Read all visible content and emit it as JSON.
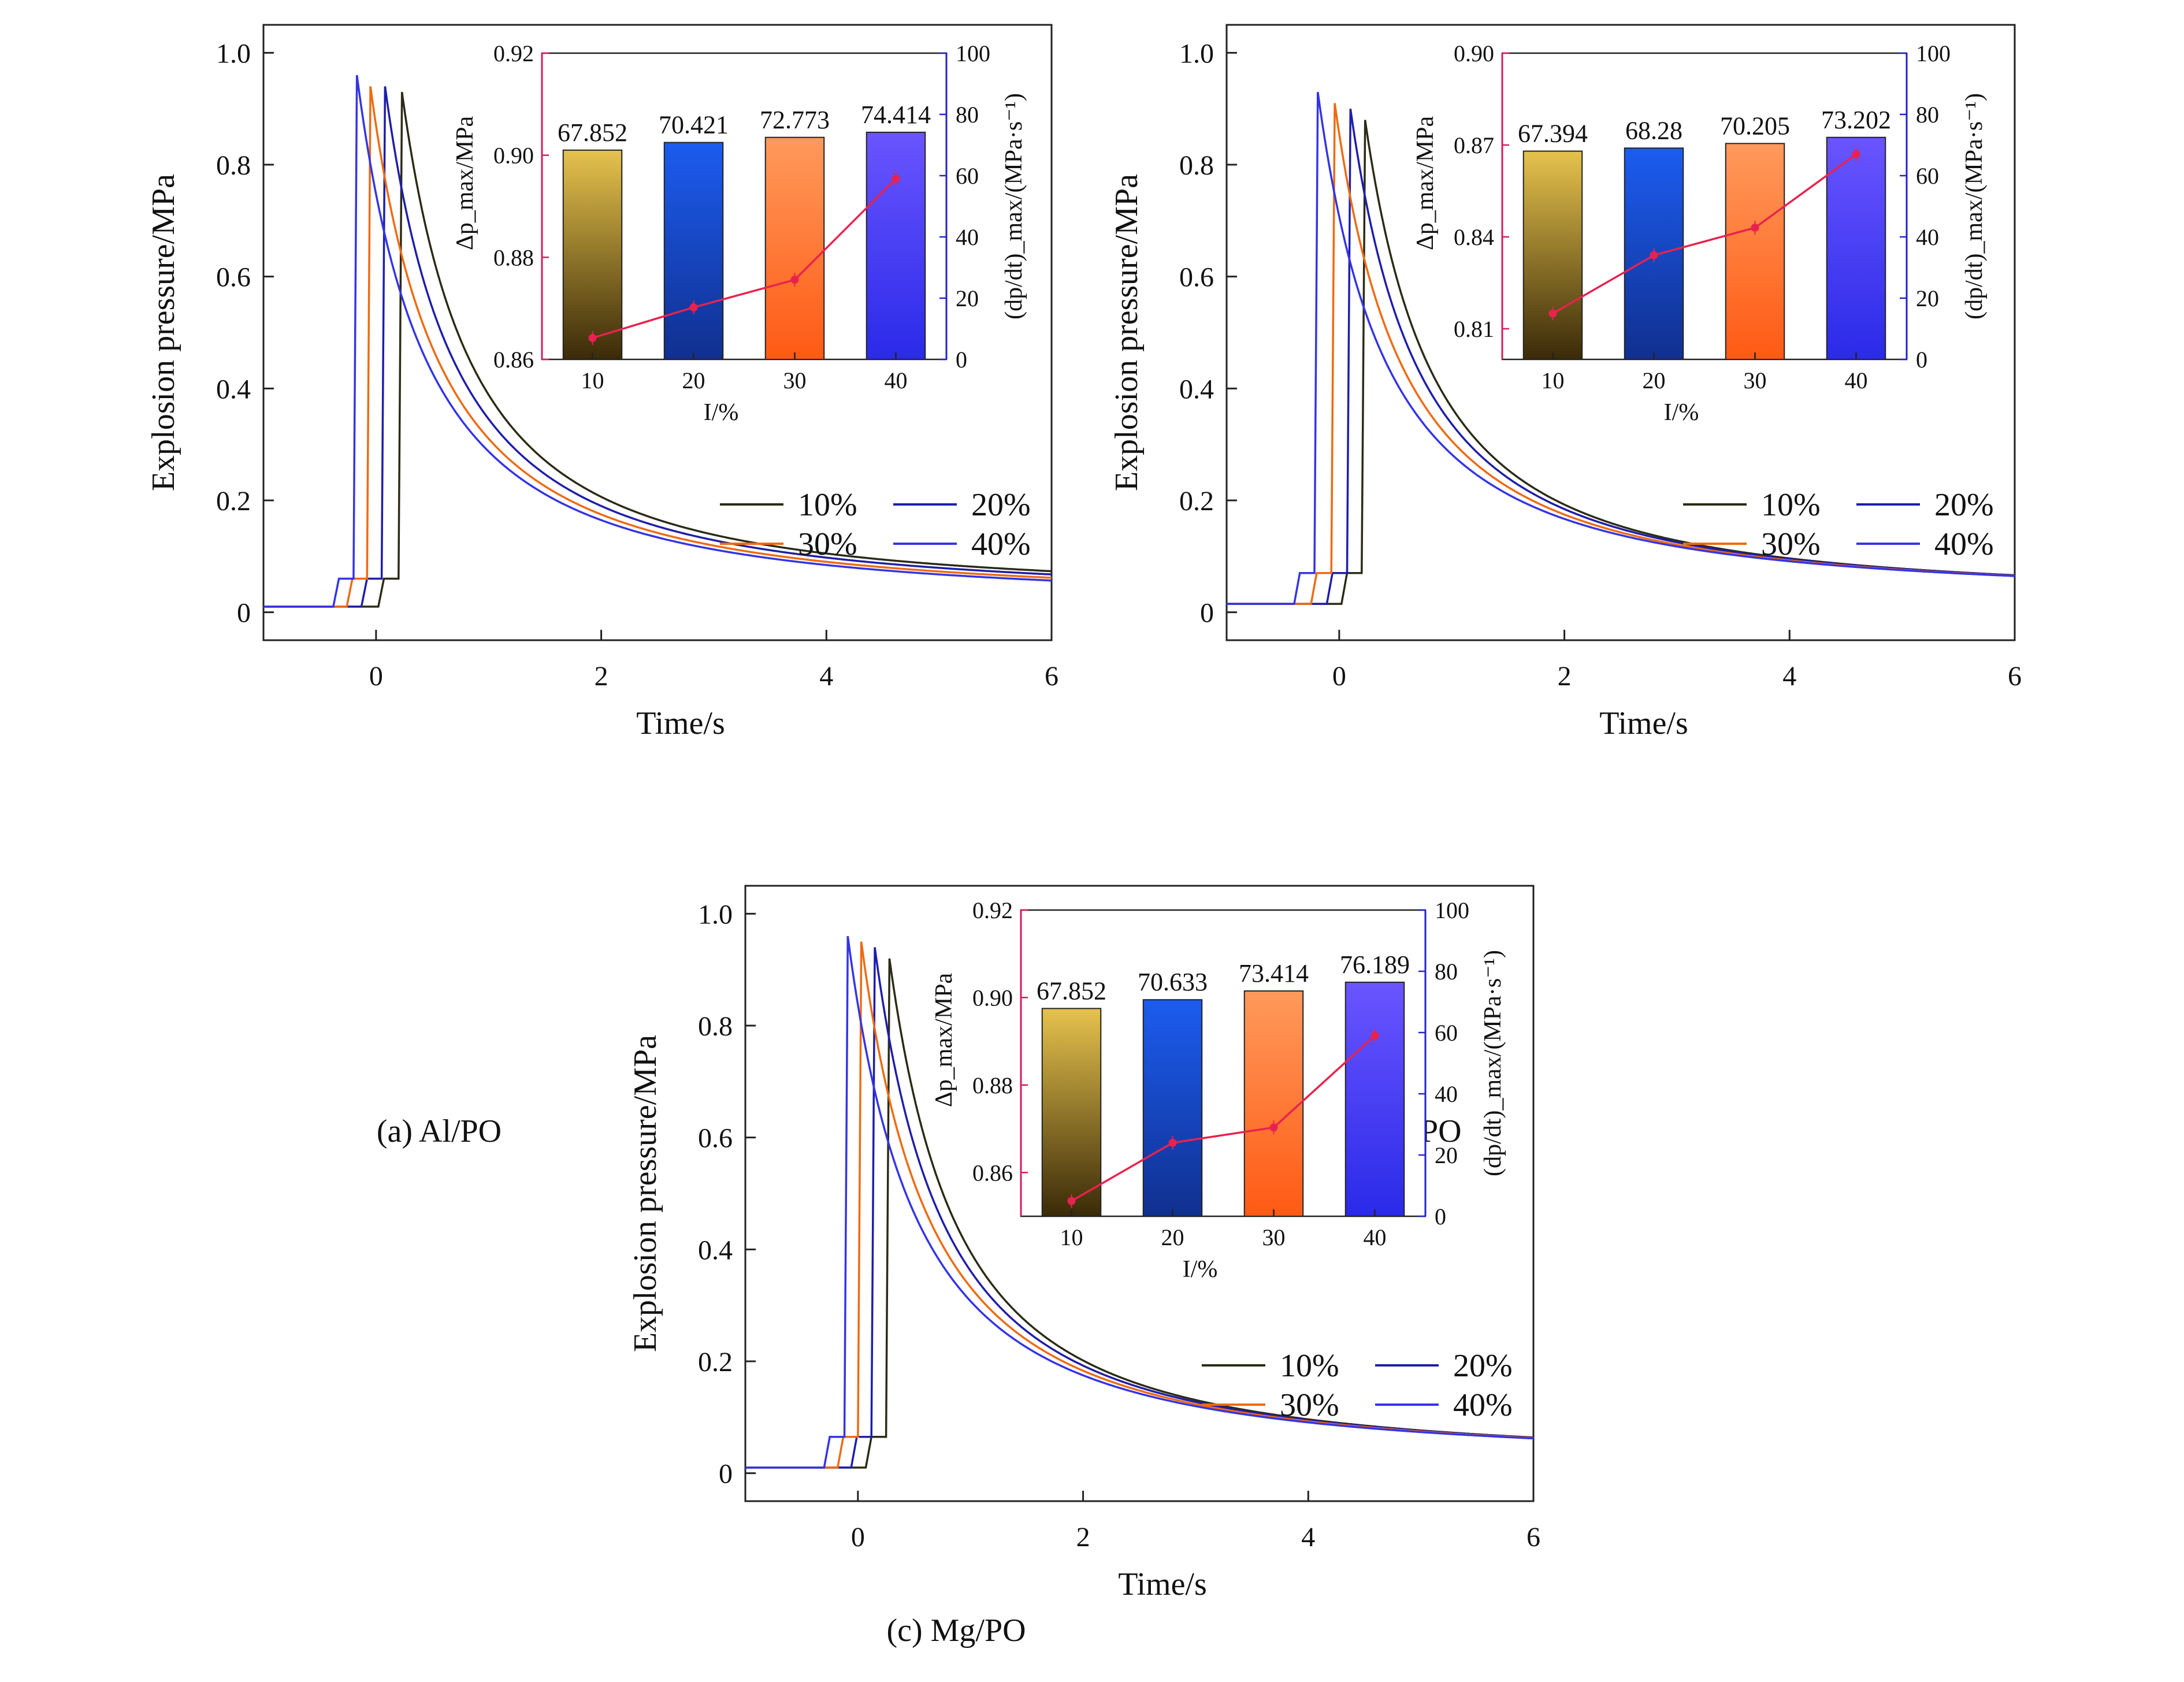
{
  "figure": {
    "legend_labels": [
      "10%",
      "20%",
      "30%",
      "40%"
    ],
    "series_colors": {
      "10%": "#2b2b16",
      "20%": "#1e1eaa",
      "30%": "#ee6a12",
      "40%": "#3434e6"
    },
    "inset_line_color": "#e8224e",
    "inset_left_axis_color": "#d81a5c",
    "inset_right_axis_color": "#2323c8",
    "inset_bar_gradients": {
      "10": [
        "#e6c24d",
        "#3a2a08"
      ],
      "20": [
        "#1c5cf0",
        "#10308f"
      ],
      "30": [
        "#ff9a5c",
        "#ff5a14"
      ],
      "40": [
        "#6a55ff",
        "#2a2ae8"
      ]
    }
  },
  "chart_data": [
    {
      "type": "line",
      "caption": "(a) Al/PO",
      "xlabel": "Time/s",
      "ylabel": "Explosion pressure/MPa",
      "xlim": [
        -1,
        6
      ],
      "ylim": [
        -0.05,
        1.05
      ],
      "x_ticks": [
        "0",
        "2",
        "4",
        "6"
      ],
      "y_ticks": [
        "0",
        "0.2",
        "0.4",
        "0.6",
        "0.8",
        "1.0"
      ],
      "series": [
        {
          "name": "10%",
          "rise_t": 0.2,
          "peak": 0.93,
          "base": 0.01,
          "shelf": 0.06,
          "tail": 0.03
        },
        {
          "name": "20%",
          "rise_t": 0.05,
          "peak": 0.94,
          "base": 0.01,
          "shelf": 0.06,
          "tail": 0.025
        },
        {
          "name": "30%",
          "rise_t": -0.08,
          "peak": 0.94,
          "base": 0.01,
          "shelf": 0.06,
          "tail": 0.02
        },
        {
          "name": "40%",
          "rise_t": -0.2,
          "peak": 0.96,
          "base": 0.01,
          "shelf": 0.06,
          "tail": 0.015
        }
      ],
      "inset": {
        "type": "bar+line",
        "categories": [
          "10",
          "20",
          "30",
          "40"
        ],
        "xlabel": "I/%",
        "ylabel_left": "Δp_max/MPa",
        "ylabel_right": "(dp/dt)_max/(MPa·s⁻¹)",
        "left_lim": [
          0.86,
          0.92
        ],
        "left_ticks": [
          "0.86",
          "0.88",
          "0.90",
          "0.92"
        ],
        "right_lim": [
          0,
          100
        ],
        "right_ticks": [
          "0",
          "20",
          "40",
          "60",
          "80",
          "100"
        ],
        "bar_values": [
          0.901,
          0.9025,
          0.9035,
          0.9045
        ],
        "bar_labels": [
          "67.852",
          "70.421",
          "72.773",
          "74.414"
        ],
        "line_values": [
          7,
          17,
          26,
          59
        ]
      }
    },
    {
      "type": "line",
      "caption": "(b) Ti/PO",
      "xlabel": "Time/s",
      "ylabel": "Explosion pressure/MPa",
      "xlim": [
        -1,
        6
      ],
      "ylim": [
        -0.05,
        1.05
      ],
      "x_ticks": [
        "0",
        "2",
        "4",
        "6"
      ],
      "y_ticks": [
        "0",
        "0.2",
        "0.4",
        "0.6",
        "0.8",
        "1.0"
      ],
      "series": [
        {
          "name": "10%",
          "rise_t": 0.2,
          "peak": 0.88,
          "base": 0.015,
          "shelf": 0.07,
          "tail": 0.025
        },
        {
          "name": "20%",
          "rise_t": 0.07,
          "peak": 0.9,
          "base": 0.015,
          "shelf": 0.07,
          "tail": 0.025
        },
        {
          "name": "30%",
          "rise_t": -0.07,
          "peak": 0.91,
          "base": 0.015,
          "shelf": 0.07,
          "tail": 0.025
        },
        {
          "name": "40%",
          "rise_t": -0.22,
          "peak": 0.93,
          "base": 0.015,
          "shelf": 0.07,
          "tail": 0.025
        }
      ],
      "inset": {
        "type": "bar+line",
        "categories": [
          "10",
          "20",
          "30",
          "40"
        ],
        "xlabel": "I/%",
        "ylabel_left": "Δp_max/MPa",
        "ylabel_right": "(dp/dt)_max/(MPa·s⁻¹)",
        "left_lim": [
          0.8,
          0.9
        ],
        "left_ticks": [
          "0.81",
          "0.84",
          "0.87",
          "0.90"
        ],
        "right_lim": [
          0,
          100
        ],
        "right_ticks": [
          "0",
          "20",
          "40",
          "60",
          "80",
          "100"
        ],
        "bar_values": [
          0.868,
          0.869,
          0.8705,
          0.8725
        ],
        "bar_labels": [
          "67.394",
          "68.28",
          "70.205",
          "73.202"
        ],
        "line_values": [
          15,
          34,
          43,
          67
        ]
      }
    },
    {
      "type": "line",
      "caption": "(c) Mg/PO",
      "xlabel": "Time/s",
      "ylabel": "Explosion pressure/MPa",
      "xlim": [
        -1,
        6
      ],
      "ylim": [
        -0.05,
        1.05
      ],
      "x_ticks": [
        "0",
        "2",
        "4",
        "6"
      ],
      "y_ticks": [
        "0",
        "0.2",
        "0.4",
        "0.6",
        "0.8",
        "1.0"
      ],
      "series": [
        {
          "name": "10%",
          "rise_t": 0.25,
          "peak": 0.92,
          "base": 0.01,
          "shelf": 0.065,
          "tail": 0.02
        },
        {
          "name": "20%",
          "rise_t": 0.12,
          "peak": 0.94,
          "base": 0.01,
          "shelf": 0.065,
          "tail": 0.02
        },
        {
          "name": "30%",
          "rise_t": 0.0,
          "peak": 0.95,
          "base": 0.01,
          "shelf": 0.065,
          "tail": 0.02
        },
        {
          "name": "40%",
          "rise_t": -0.12,
          "peak": 0.96,
          "base": 0.01,
          "shelf": 0.065,
          "tail": 0.02
        }
      ],
      "inset": {
        "type": "bar+line",
        "categories": [
          "10",
          "20",
          "30",
          "40"
        ],
        "xlabel": "I/%",
        "ylabel_left": "Δp_max/MPa",
        "ylabel_right": "(dp/dt)_max/(MPa·s⁻¹)",
        "left_lim": [
          0.85,
          0.92
        ],
        "left_ticks": [
          "0.86",
          "0.88",
          "0.90",
          "0.92"
        ],
        "right_lim": [
          0,
          100
        ],
        "right_ticks": [
          "0",
          "20",
          "40",
          "60",
          "80",
          "100"
        ],
        "bar_values": [
          0.8975,
          0.8995,
          0.9015,
          0.9035
        ],
        "bar_labels": [
          "67.852",
          "70.633",
          "73.414",
          "76.189"
        ],
        "line_values": [
          5,
          24,
          29,
          59
        ]
      }
    }
  ]
}
